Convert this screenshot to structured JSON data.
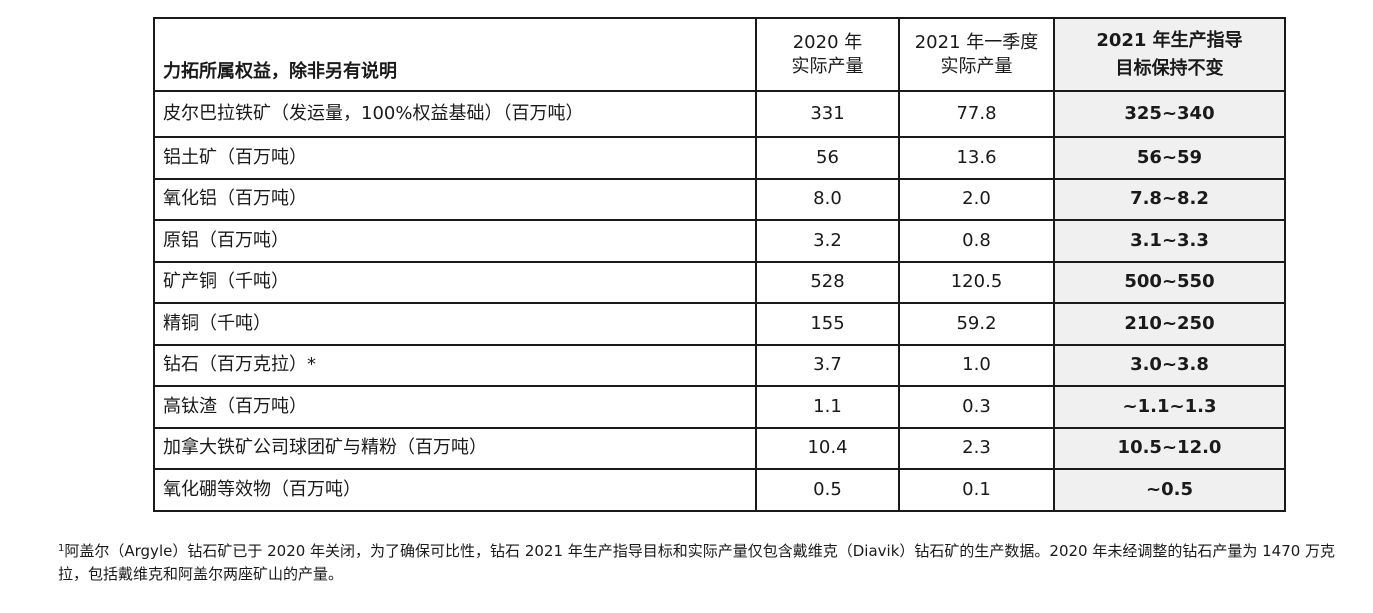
{
  "table": {
    "headers": {
      "label": "力拓所属权益，除非另有说明",
      "col2020": [
        "2020 年",
        "实际产量"
      ],
      "col2021q1": [
        "2021 年一季度",
        "实际产量"
      ],
      "guidance": [
        "2021 年生产指导",
        "目标保持不变"
      ]
    },
    "rows": [
      {
        "name": "皮尔巴拉铁矿（发运量，100%权益基础）（百万吨）",
        "y2020": "331",
        "q1_2021": "77.8",
        "guidance": "325~340"
      },
      {
        "name": "铝土矿（百万吨）",
        "y2020": "56",
        "q1_2021": "13.6",
        "guidance": "56~59"
      },
      {
        "name": "氧化铝（百万吨）",
        "y2020": "8.0",
        "q1_2021": "2.0",
        "guidance": "7.8~8.2"
      },
      {
        "name": "原铝（百万吨）",
        "y2020": "3.2",
        "q1_2021": "0.8",
        "guidance": "3.1~3.3"
      },
      {
        "name": "矿产铜（千吨）",
        "y2020": "528",
        "q1_2021": "120.5",
        "guidance": "500~550"
      },
      {
        "name": "精铜（千吨）",
        "y2020": "155",
        "q1_2021": "59.2",
        "guidance": "210~250"
      },
      {
        "name": "钻石（百万克拉）*",
        "y2020": "3.7",
        "q1_2021": "1.0",
        "guidance": "3.0~3.8"
      },
      {
        "name": "高钛渣（百万吨）",
        "y2020": "1.1",
        "q1_2021": "0.3",
        "guidance": "~1.1~1.3"
      },
      {
        "name": "加拿大铁矿公司球团矿与精粉（百万吨）",
        "y2020": "10.4",
        "q1_2021": "2.3",
        "guidance": "10.5~12.0"
      },
      {
        "name": "氧化硼等效物（百万吨）",
        "y2020": "0.5",
        "q1_2021": "0.1",
        "guidance": "~0.5"
      }
    ]
  },
  "footnote": {
    "marker": "1",
    "text": "阿盖尔（Argyle）钻石矿已于 2020 年关闭，为了确保可比性，钻石 2021 年生产指导目标和实际产量仅包含戴维克（Diavik）钻石矿的生产数据。2020 年未经调整的钻石产量为 1470 万克拉，包括戴维克和阿盖尔两座矿山的产量。"
  }
}
